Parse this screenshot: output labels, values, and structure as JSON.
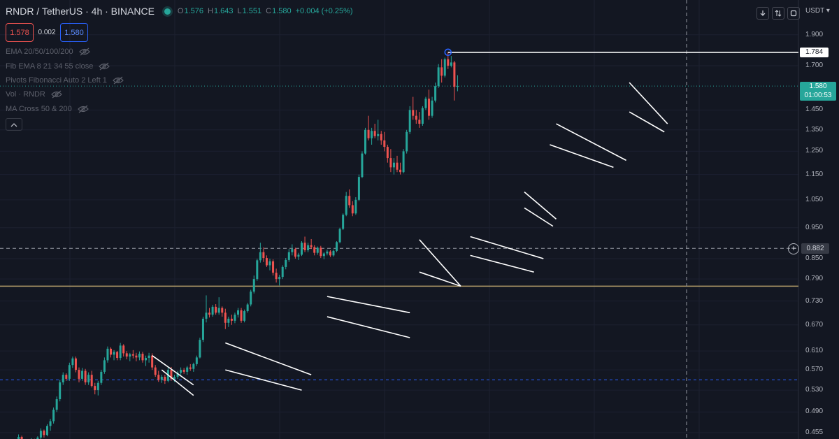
{
  "header": {
    "symbol": "RNDR / TetherUS · 4h · BINANCE",
    "open_label": "O",
    "open": "1.576",
    "high_label": "H",
    "high": "1.643",
    "low_label": "L",
    "low": "1.551",
    "close_label": "C",
    "close": "1.580",
    "change": "+0.004 (+0.25%)"
  },
  "trade": {
    "sell": "1.578",
    "spread": "0.002",
    "buy": "1.580"
  },
  "indicators": [
    "EMA 20/50/100/200",
    "Fib EMA 8 21 34 55 close",
    "Pivots Fibonacci Auto 2 Left 1",
    "Vol · RNDR",
    "MA Cross 50 & 200"
  ],
  "price_axis": {
    "currency": "USDT",
    "ticks": [
      "1.900",
      "1.700",
      "1.450",
      "1.350",
      "1.250",
      "1.150",
      "1.050",
      "0.950",
      "0.850",
      "0.790",
      "0.730",
      "0.670",
      "0.610",
      "0.570",
      "0.530",
      "0.490",
      "0.455"
    ],
    "high_marker": "1.784",
    "current_price": "1.580",
    "countdown": "01:00:53",
    "crosshair_price": "0.882"
  },
  "colors": {
    "up": "#26a69a",
    "down": "#ef5350",
    "support": "#b59e6a",
    "background": "#131722"
  },
  "chart_data": {
    "type": "candlestick",
    "symbol": "RNDR/USDT",
    "timeframe": "4h",
    "scale": "log",
    "ylim": [
      0.44,
      1.95
    ],
    "horizontal_levels": {
      "support": 0.77,
      "blue_dotted": 0.55,
      "recent_high": 1.784,
      "crosshair": 0.882
    },
    "candles": [
      [
        0.433,
        0.436,
        0.428,
        0.432
      ],
      [
        0.432,
        0.452,
        0.43,
        0.448
      ],
      [
        0.448,
        0.45,
        0.438,
        0.442
      ],
      [
        0.442,
        0.444,
        0.432,
        0.436
      ],
      [
        0.436,
        0.441,
        0.429,
        0.439
      ],
      [
        0.439,
        0.446,
        0.435,
        0.443
      ],
      [
        0.443,
        0.445,
        0.433,
        0.437
      ],
      [
        0.437,
        0.449,
        0.435,
        0.447
      ],
      [
        0.447,
        0.462,
        0.444,
        0.458
      ],
      [
        0.458,
        0.46,
        0.447,
        0.451
      ],
      [
        0.451,
        0.469,
        0.449,
        0.466
      ],
      [
        0.466,
        0.478,
        0.458,
        0.474
      ],
      [
        0.474,
        0.498,
        0.47,
        0.494
      ],
      [
        0.494,
        0.518,
        0.49,
        0.513
      ],
      [
        0.513,
        0.55,
        0.509,
        0.545
      ],
      [
        0.545,
        0.565,
        0.54,
        0.56
      ],
      [
        0.56,
        0.563,
        0.548,
        0.552
      ],
      [
        0.552,
        0.585,
        0.548,
        0.58
      ],
      [
        0.58,
        0.598,
        0.574,
        0.594
      ],
      [
        0.594,
        0.598,
        0.565,
        0.57
      ],
      [
        0.57,
        0.575,
        0.545,
        0.552
      ],
      [
        0.552,
        0.574,
        0.548,
        0.568
      ],
      [
        0.568,
        0.572,
        0.54,
        0.545
      ],
      [
        0.545,
        0.565,
        0.54,
        0.56
      ],
      [
        0.56,
        0.568,
        0.535,
        0.538
      ],
      [
        0.538,
        0.544,
        0.522,
        0.53
      ],
      [
        0.53,
        0.548,
        0.52,
        0.544
      ],
      [
        0.544,
        0.57,
        0.54,
        0.566
      ],
      [
        0.566,
        0.596,
        0.562,
        0.59
      ],
      [
        0.59,
        0.62,
        0.585,
        0.615
      ],
      [
        0.615,
        0.618,
        0.596,
        0.602
      ],
      [
        0.602,
        0.612,
        0.59,
        0.608
      ],
      [
        0.608,
        0.61,
        0.59,
        0.595
      ],
      [
        0.595,
        0.628,
        0.59,
        0.622
      ],
      [
        0.622,
        0.625,
        0.598,
        0.605
      ],
      [
        0.605,
        0.61,
        0.592,
        0.598
      ],
      [
        0.598,
        0.606,
        0.588,
        0.603
      ],
      [
        0.603,
        0.612,
        0.594,
        0.6
      ],
      [
        0.6,
        0.606,
        0.588,
        0.596
      ],
      [
        0.596,
        0.609,
        0.59,
        0.604
      ],
      [
        0.604,
        0.608,
        0.585,
        0.59
      ],
      [
        0.59,
        0.6,
        0.578,
        0.595
      ],
      [
        0.595,
        0.606,
        0.585,
        0.6
      ],
      [
        0.6,
        0.605,
        0.57,
        0.575
      ],
      [
        0.575,
        0.58,
        0.556,
        0.56
      ],
      [
        0.56,
        0.568,
        0.546,
        0.55
      ],
      [
        0.55,
        0.56,
        0.544,
        0.556
      ],
      [
        0.556,
        0.56,
        0.542,
        0.548
      ],
      [
        0.548,
        0.575,
        0.545,
        0.57
      ],
      [
        0.57,
        0.576,
        0.548,
        0.552
      ],
      [
        0.552,
        0.56,
        0.546,
        0.556
      ],
      [
        0.556,
        0.568,
        0.552,
        0.564
      ],
      [
        0.564,
        0.575,
        0.56,
        0.57
      ],
      [
        0.57,
        0.574,
        0.562,
        0.566
      ],
      [
        0.566,
        0.578,
        0.56,
        0.575
      ],
      [
        0.575,
        0.582,
        0.568,
        0.572
      ],
      [
        0.572,
        0.585,
        0.566,
        0.582
      ],
      [
        0.582,
        0.6,
        0.578,
        0.596
      ],
      [
        0.596,
        0.64,
        0.594,
        0.635
      ],
      [
        0.635,
        0.69,
        0.63,
        0.685
      ],
      [
        0.685,
        0.745,
        0.676,
        0.7
      ],
      [
        0.7,
        0.712,
        0.688,
        0.695
      ],
      [
        0.695,
        0.72,
        0.69,
        0.715
      ],
      [
        0.715,
        0.722,
        0.695,
        0.7
      ],
      [
        0.7,
        0.74,
        0.695,
        0.712
      ],
      [
        0.712,
        0.716,
        0.69,
        0.7
      ],
      [
        0.7,
        0.71,
        0.66,
        0.675
      ],
      [
        0.675,
        0.69,
        0.665,
        0.685
      ],
      [
        0.685,
        0.695,
        0.67,
        0.68
      ],
      [
        0.68,
        0.7,
        0.674,
        0.695
      ],
      [
        0.695,
        0.712,
        0.688,
        0.706
      ],
      [
        0.706,
        0.712,
        0.675,
        0.68
      ],
      [
        0.68,
        0.708,
        0.676,
        0.704
      ],
      [
        0.704,
        0.725,
        0.7,
        0.721
      ],
      [
        0.721,
        0.76,
        0.716,
        0.755
      ],
      [
        0.755,
        0.8,
        0.75,
        0.79
      ],
      [
        0.79,
        0.85,
        0.785,
        0.845
      ],
      [
        0.845,
        0.9,
        0.838,
        0.87
      ],
      [
        0.87,
        0.885,
        0.84,
        0.852
      ],
      [
        0.852,
        0.86,
        0.825,
        0.83
      ],
      [
        0.83,
        0.85,
        0.815,
        0.842
      ],
      [
        0.842,
        0.848,
        0.8,
        0.808
      ],
      [
        0.808,
        0.82,
        0.78,
        0.79
      ],
      [
        0.79,
        0.802,
        0.772,
        0.796
      ],
      [
        0.796,
        0.83,
        0.79,
        0.825
      ],
      [
        0.825,
        0.852,
        0.818,
        0.846
      ],
      [
        0.846,
        0.88,
        0.84,
        0.87
      ],
      [
        0.87,
        0.895,
        0.86,
        0.88
      ],
      [
        0.88,
        0.884,
        0.85,
        0.856
      ],
      [
        0.856,
        0.868,
        0.846,
        0.862
      ],
      [
        0.862,
        0.905,
        0.858,
        0.9
      ],
      [
        0.9,
        0.92,
        0.87,
        0.876
      ],
      [
        0.876,
        0.9,
        0.87,
        0.892
      ],
      [
        0.892,
        0.912,
        0.88,
        0.886
      ],
      [
        0.886,
        0.892,
        0.86,
        0.868
      ],
      [
        0.868,
        0.888,
        0.862,
        0.884
      ],
      [
        0.884,
        0.89,
        0.852,
        0.858
      ],
      [
        0.858,
        0.87,
        0.848,
        0.866
      ],
      [
        0.866,
        0.878,
        0.86,
        0.872
      ],
      [
        0.872,
        0.876,
        0.855,
        0.86
      ],
      [
        0.86,
        0.878,
        0.856,
        0.874
      ],
      [
        0.874,
        0.905,
        0.87,
        0.902
      ],
      [
        0.902,
        0.95,
        0.898,
        0.946
      ],
      [
        0.946,
        1.0,
        0.942,
        0.995
      ],
      [
        0.995,
        1.08,
        0.99,
        1.065
      ],
      [
        1.065,
        1.09,
        1.02,
        1.03
      ],
      [
        1.03,
        1.045,
        0.99,
        1.0
      ],
      [
        1.0,
        1.06,
        0.995,
        1.05
      ],
      [
        1.05,
        1.15,
        1.045,
        1.14
      ],
      [
        1.14,
        1.25,
        1.135,
        1.24
      ],
      [
        1.24,
        1.36,
        1.235,
        1.35
      ],
      [
        1.35,
        1.42,
        1.3,
        1.31
      ],
      [
        1.31,
        1.36,
        1.28,
        1.345
      ],
      [
        1.345,
        1.38,
        1.31,
        1.32
      ],
      [
        1.32,
        1.4,
        1.3,
        1.33
      ],
      [
        1.33,
        1.345,
        1.28,
        1.3
      ],
      [
        1.3,
        1.34,
        1.25,
        1.27
      ],
      [
        1.27,
        1.28,
        1.2,
        1.22
      ],
      [
        1.22,
        1.26,
        1.16,
        1.18
      ],
      [
        1.18,
        1.22,
        1.15,
        1.2
      ],
      [
        1.2,
        1.23,
        1.16,
        1.17
      ],
      [
        1.17,
        1.2,
        1.15,
        1.16
      ],
      [
        1.16,
        1.26,
        1.155,
        1.25
      ],
      [
        1.25,
        1.35,
        1.24,
        1.34
      ],
      [
        1.34,
        1.47,
        1.33,
        1.45
      ],
      [
        1.45,
        1.52,
        1.4,
        1.42
      ],
      [
        1.42,
        1.45,
        1.38,
        1.4
      ],
      [
        1.4,
        1.44,
        1.36,
        1.38
      ],
      [
        1.38,
        1.47,
        1.37,
        1.46
      ],
      [
        1.46,
        1.52,
        1.45,
        1.51
      ],
      [
        1.51,
        1.56,
        1.4,
        1.42
      ],
      [
        1.42,
        1.52,
        1.41,
        1.5
      ],
      [
        1.5,
        1.6,
        1.49,
        1.58
      ],
      [
        1.58,
        1.71,
        1.57,
        1.69
      ],
      [
        1.69,
        1.74,
        1.6,
        1.64
      ],
      [
        1.64,
        1.75,
        1.63,
        1.74
      ],
      [
        1.74,
        1.784,
        1.68,
        1.7
      ],
      [
        1.7,
        1.76,
        1.69,
        1.72
      ],
      [
        1.72,
        1.73,
        1.5,
        1.576
      ],
      [
        1.576,
        1.643,
        1.551,
        1.58
      ]
    ],
    "drawings": [
      {
        "type": "trendline",
        "from": [
          43,
          0.6
        ],
        "to": [
          56,
          0.54
        ]
      },
      {
        "type": "trendline",
        "from": [
          46,
          0.57
        ],
        "to": [
          56,
          0.52
        ]
      },
      {
        "type": "trendline",
        "from": [
          66,
          0.628
        ],
        "to": [
          93,
          0.56
        ]
      },
      {
        "type": "trendline",
        "from": [
          66,
          0.57
        ],
        "to": [
          90,
          0.53
        ]
      },
      {
        "type": "trendline",
        "from": [
          98,
          0.742
        ],
        "to": [
          124,
          0.7
        ]
      },
      {
        "type": "trendline",
        "from": [
          98,
          0.69
        ],
        "to": [
          124,
          0.64
        ]
      },
      {
        "type": "trendline",
        "from": [
          127,
          0.91
        ],
        "to": [
          140,
          0.77
        ]
      },
      {
        "type": "trendline",
        "from": [
          127,
          0.81
        ],
        "to": [
          140,
          0.77
        ]
      },
      {
        "type": "trendline",
        "from": [
          143,
          0.92
        ],
        "to": [
          166,
          0.85
        ]
      },
      {
        "type": "trendline",
        "from": [
          143,
          0.86
        ],
        "to": [
          163,
          0.81
        ]
      },
      {
        "type": "trendline",
        "from": [
          160,
          1.08
        ],
        "to": [
          170,
          0.98
        ]
      },
      {
        "type": "trendline",
        "from": [
          160,
          1.02
        ],
        "to": [
          169,
          0.955
        ]
      },
      {
        "type": "trendline",
        "from": [
          170,
          1.38
        ],
        "to": [
          192,
          1.21
        ]
      },
      {
        "type": "trendline",
        "from": [
          168,
          1.28
        ],
        "to": [
          188,
          1.18
        ]
      },
      {
        "type": "trendline",
        "from": [
          193,
          1.6
        ],
        "to": [
          205,
          1.38
        ]
      },
      {
        "type": "trendline",
        "from": [
          193,
          1.44
        ],
        "to": [
          204,
          1.34
        ]
      }
    ]
  }
}
